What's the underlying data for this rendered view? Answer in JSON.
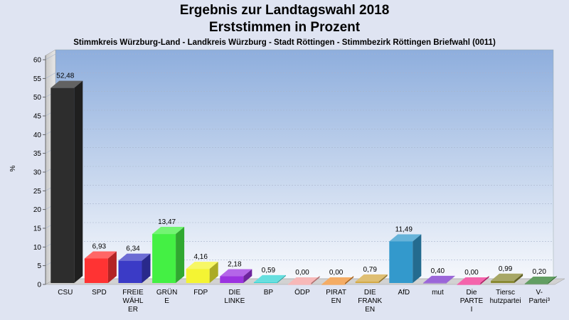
{
  "header": {
    "title": "Ergebnis zur Landtagswahl 2018",
    "subtitle": "Erststimmen in Prozent",
    "description": "Stimmkreis Würzburg-Land - Landkreis Würzburg - Stadt Röttingen - Stimmbezirk Röttingen Briefwahl (0011)"
  },
  "chart_data": {
    "type": "bar",
    "title": "Ergebnis zur Landtagswahl 2018",
    "subtitle": "Erststimmen in Prozent",
    "xlabel": "",
    "ylabel": "%",
    "ylim": [
      0,
      60
    ],
    "yticks": [
      0,
      5,
      10,
      15,
      20,
      25,
      30,
      35,
      40,
      45,
      50,
      55,
      60
    ],
    "grid": true,
    "legend": "none",
    "categories": [
      [
        "CSU"
      ],
      [
        "SPD"
      ],
      [
        "FREIE",
        "WÄHL",
        "ER"
      ],
      [
        "GRÜN",
        "E"
      ],
      [
        "FDP"
      ],
      [
        "DIE",
        "LINKE"
      ],
      [
        "BP"
      ],
      [
        "ÖDP"
      ],
      [
        "PIRAT",
        "EN"
      ],
      [
        "DIE",
        "FRANK",
        "EN"
      ],
      [
        "AfD"
      ],
      [
        "mut"
      ],
      [
        "Die",
        "PARTE",
        "I"
      ],
      [
        "Tiersc",
        "hutzpartei"
      ],
      [
        "V-",
        "Partei³"
      ]
    ],
    "values": [
      52.48,
      6.93,
      6.34,
      13.47,
      4.16,
      2.18,
      0.59,
      0.0,
      0.0,
      0.79,
      11.49,
      0.4,
      0.0,
      0.99,
      0.2
    ],
    "value_labels": [
      "52,48",
      "6,93",
      "6,34",
      "13,47",
      "4,16",
      "2,18",
      "0,59",
      "0,00",
      "0,00",
      "0,79",
      "11,49",
      "0,40",
      "0,00",
      "0,99",
      "0,20"
    ],
    "colors": [
      "#2d2d2d",
      "#ff3333",
      "#3b3bc6",
      "#44f044",
      "#f4f433",
      "#9b33e0",
      "#33d4d4",
      "#f4a0a0",
      "#f09030",
      "#d4aa44",
      "#3399cc",
      "#7a33cc",
      "#f03090",
      "#8a8a33",
      "#2e7d2e"
    ]
  }
}
